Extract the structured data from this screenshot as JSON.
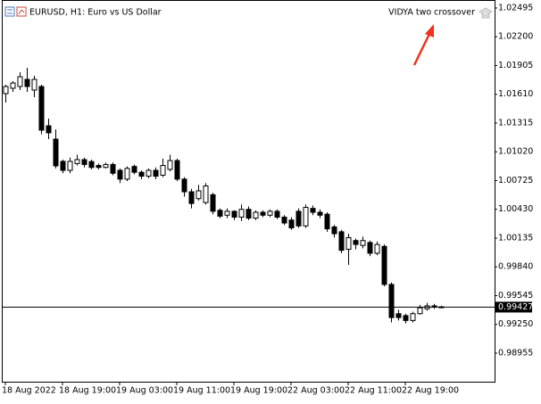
{
  "chart_data": {
    "type": "candlestick",
    "title": "EURUSD, H1:  Euro vs US Dollar",
    "indicator": "VIDYA two crossover",
    "bull_color": "#ffffff",
    "bear_color": "#000000",
    "outline_color": "#000000",
    "categories": [
      "18 Aug 2022",
      null,
      null,
      null,
      null,
      null,
      null,
      null,
      "18 Aug 19:00",
      null,
      null,
      null,
      null,
      null,
      null,
      null,
      "19 Aug 03:00",
      null,
      null,
      null,
      null,
      null,
      null,
      null,
      "19 Aug 11:00",
      null,
      null,
      null,
      null,
      null,
      null,
      null,
      "19 Aug 19:00",
      null,
      null,
      null,
      null,
      null,
      null,
      null,
      "22 Aug 03:00",
      null,
      null,
      null,
      null,
      null,
      null,
      null,
      "22 Aug 11:00",
      null,
      null,
      null,
      null,
      null,
      null,
      null,
      "22 Aug 19:00",
      null,
      null,
      null,
      null,
      null
    ],
    "open": [
      1.01617,
      1.01672,
      1.0169,
      1.01763,
      1.01653,
      1.0169,
      1.01287,
      1.0115,
      1.00922,
      1.0083,
      1.009,
      1.0094,
      1.0092,
      1.0088,
      1.0086,
      1.0089,
      1.0083,
      1.0074,
      1.0087,
      1.0081,
      1.0077,
      1.0083,
      1.0078,
      1.0084,
      1.0093,
      1.0074,
      1.0061,
      1.0054,
      1.005,
      1.0058,
      1.0042,
      1.0037,
      1.0041,
      1.0035,
      1.0043,
      1.0034,
      1.004,
      1.0037,
      1.0041,
      1.0035,
      1.0032,
      1.0041,
      1.0026,
      1.0044,
      1.004,
      1.0038,
      1.0025,
      1.002,
      1.0002,
      1.0011,
      1.0006,
      1.0009,
      0.9998,
      1.0005,
      0.9966,
      0.9936,
      0.9934,
      0.9929,
      0.9936,
      0.9941,
      0.9944,
      0.9943
    ],
    "high": [
      1.01708,
      1.01745,
      1.01836,
      1.01882,
      1.018,
      1.01708,
      1.0136,
      1.0125,
      1.0094,
      1.0096,
      1.0099,
      1.0096,
      1.0094,
      1.009,
      1.0091,
      1.0091,
      1.0085,
      1.0087,
      1.0089,
      1.0083,
      1.0085,
      1.0086,
      1.0095,
      1.0099,
      1.0095,
      1.0076,
      1.0064,
      1.0068,
      1.007,
      1.006,
      1.0044,
      1.0044,
      1.0042,
      1.0048,
      1.0046,
      1.0042,
      1.0042,
      1.0043,
      1.0043,
      1.0037,
      1.0035,
      1.0044,
      1.0048,
      1.0047,
      1.0043,
      1.004,
      1.0027,
      1.0022,
      1.0018,
      1.0013,
      1.0015,
      1.0011,
      1.001,
      1.0007,
      0.9968,
      0.994,
      0.9936,
      0.9938,
      0.9945,
      0.9947,
      0.9946,
      0.9944
    ],
    "low": [
      1.01525,
      1.01635,
      1.01653,
      1.01635,
      1.0158,
      1.012,
      1.0115,
      1.0085,
      1.008,
      1.008,
      1.0088,
      1.0086,
      1.0084,
      1.0084,
      1.0085,
      1.0078,
      1.007,
      1.0072,
      1.0079,
      1.0074,
      1.0075,
      1.0074,
      1.0076,
      1.0082,
      1.0072,
      1.0056,
      1.0044,
      1.0052,
      1.0048,
      1.0038,
      1.0034,
      1.0034,
      1.0032,
      1.0031,
      1.0032,
      1.0032,
      1.0035,
      1.0035,
      1.0033,
      1.0027,
      1.0022,
      1.0024,
      1.0024,
      1.0037,
      1.0034,
      1.002,
      1.0014,
      0.9998,
      0.9986,
      1.0002,
      1.0003,
      0.9995,
      0.9996,
      0.9964,
      0.9927,
      0.9929,
      0.9926,
      0.9927,
      0.9935,
      0.9939,
      0.9941,
      0.9942
    ],
    "close": [
      1.0169,
      1.01726,
      1.0179,
      1.0169,
      1.01763,
      1.01242,
      1.01215,
      1.00876,
      1.0083,
      1.00922,
      1.0094,
      1.0089,
      1.0086,
      1.0086,
      1.0089,
      1.008,
      1.0074,
      1.0085,
      1.0081,
      1.0077,
      1.0083,
      1.0077,
      1.0088,
      1.0093,
      1.0074,
      1.0061,
      1.0049,
      1.0062,
      1.0067,
      1.0041,
      1.0036,
      1.0041,
      1.0035,
      1.0043,
      1.0034,
      1.004,
      1.0037,
      1.0041,
      1.0035,
      1.0029,
      1.0024,
      1.0026,
      1.0045,
      1.004,
      1.0037,
      1.0023,
      1.0018,
      1.0001,
      1.0014,
      1.0007,
      1.0011,
      0.9998,
      1.0007,
      0.9966,
      0.9932,
      0.9932,
      0.9929,
      0.9936,
      0.9942,
      0.9944,
      0.9943,
      0.99427
    ],
    "last_price": 0.99427,
    "ylim": [
      0.98653,
      1.02568
    ],
    "yticks": [
      1.02495,
      {
        "value": 1.022,
        "label": "1.02200"
      },
      1.01905,
      {
        "value": 1.0161,
        "label": "1.01610"
      },
      1.01315,
      {
        "value": 1.0102,
        "label": "1.01020"
      },
      1.00725,
      {
        "value": 1.0043,
        "label": "1.00430"
      },
      1.00135,
      {
        "value": 0.9984,
        "label": "0.99840"
      },
      0.99545,
      {
        "value": 0.9925,
        "label": "0.99250"
      },
      0.98955
    ]
  }
}
